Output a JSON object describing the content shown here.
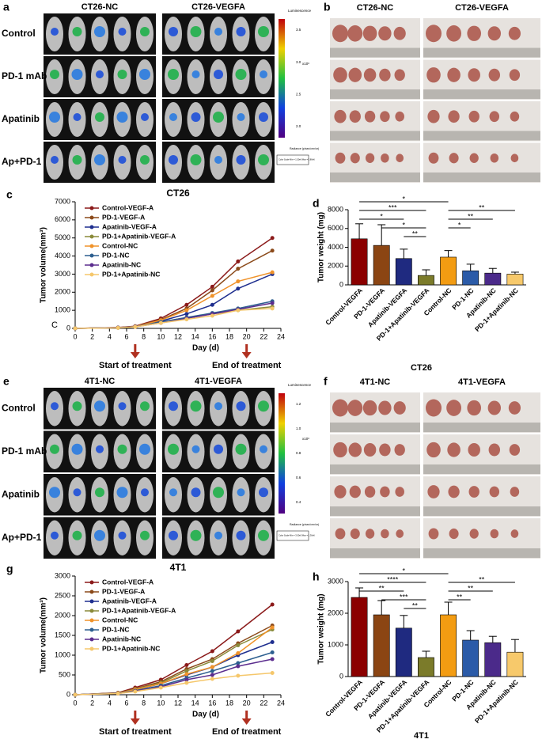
{
  "panels": {
    "a": {
      "letter": "a",
      "groups": [
        "CT26-NC",
        "CT26-VEGFA"
      ],
      "rows": [
        "Control",
        "PD-1 mAb",
        "Apatinib",
        "Ap+PD-1"
      ],
      "colorbar": {
        "title": "Luminescence",
        "ticks": [
          "3.5",
          "3.0",
          "2.5",
          "2.0"
        ],
        "unit": "x10⁶",
        "label": "Radiance (p/sec/cm²/sr)",
        "scale": "Color Scale Min = 1.50e6 Max = 3.80e6"
      }
    },
    "b": {
      "letter": "b",
      "groups": [
        "CT26-NC",
        "CT26-VEGFA"
      ]
    },
    "e": {
      "letter": "e",
      "groups": [
        "4T1-NC",
        "4T1-VEGFA"
      ],
      "rows": [
        "Control",
        "PD-1 mAb",
        "Apatinib",
        "Ap+PD-1"
      ],
      "colorbar": {
        "title": "Luminescence",
        "ticks": [
          "1.2",
          "1.0",
          "0.8",
          "0.6",
          "0.4"
        ],
        "unit": "x10⁶",
        "label": "Radiance (p/sec/cm²/sr)",
        "scale": "Color Scale Min = 3.00e5 Max = 1.30e6"
      }
    },
    "f": {
      "letter": "f",
      "groups": [
        "4T1-NC",
        "4T1-VEGFA"
      ]
    }
  },
  "chart_data": [
    {
      "type": "line",
      "panel": "c",
      "title": "CT26",
      "xlabel": "Day (d)",
      "ylabel": "Tumor volume(mm³)",
      "note": "C",
      "x": [
        0,
        5,
        7,
        10,
        13,
        16,
        19,
        23
      ],
      "xlim": [
        0,
        24
      ],
      "xticks": [
        0,
        2,
        4,
        6,
        8,
        10,
        12,
        14,
        16,
        18,
        20,
        22,
        24
      ],
      "ylim": [
        0,
        7000
      ],
      "yticks": [
        0,
        1000,
        2000,
        3000,
        4000,
        5000,
        6000,
        7000
      ],
      "annotations": [
        {
          "x": 7,
          "label": "Start of treatment"
        },
        {
          "x": 20,
          "label": "End of treatment"
        }
      ],
      "series": [
        {
          "name": "Control-VEGF-A",
          "color": "#8b1a1a",
          "values": [
            0,
            50,
            120,
            550,
            1300,
            2300,
            3700,
            5000
          ]
        },
        {
          "name": "PD-1-VEGF-A",
          "color": "#8b4a1a",
          "values": [
            0,
            45,
            110,
            480,
            1100,
            2100,
            3300,
            4300
          ]
        },
        {
          "name": "Apatinib-VEGF-A",
          "color": "#1f2f8f",
          "values": [
            0,
            40,
            100,
            400,
            800,
            1300,
            2200,
            3000
          ]
        },
        {
          "name": "PD-1+Apatinib-VEGF-A",
          "color": "#8a8a3a",
          "values": [
            0,
            35,
            90,
            350,
            600,
            800,
            1000,
            1200
          ]
        },
        {
          "name": "Control-NC",
          "color": "#f0932b",
          "values": [
            0,
            40,
            100,
            450,
            1000,
            1800,
            2600,
            3100
          ]
        },
        {
          "name": "PD-1-NC",
          "color": "#2d5f8f",
          "values": [
            0,
            35,
            90,
            350,
            600,
            850,
            1100,
            1500
          ]
        },
        {
          "name": "Apatinib-NC",
          "color": "#5b2d8e",
          "values": [
            0,
            35,
            90,
            300,
            550,
            800,
            1050,
            1400
          ]
        },
        {
          "name": "PD-1+Apatinib-NC",
          "color": "#f5c76b",
          "values": [
            0,
            30,
            80,
            300,
            500,
            700,
            1000,
            1100
          ]
        }
      ]
    },
    {
      "type": "bar",
      "panel": "d",
      "xlabel": "CT26",
      "ylabel": "Tumor weight (mg)",
      "categories": [
        "Control-VEGFA",
        "PD-1-VEGFA",
        "Apatinib-VEGFA",
        "PD-1+Apatinib-VEGFA",
        "Control-NC",
        "PD-1-NC",
        "Apatinib-NC",
        "PD-1+Apatinib-NC"
      ],
      "values": [
        4900,
        4200,
        2800,
        1000,
        2950,
        1500,
        1250,
        1150
      ],
      "errors": [
        1600,
        2200,
        1000,
        600,
        700,
        700,
        500,
        200
      ],
      "colors": [
        "#8b0000",
        "#8b4513",
        "#1f2a80",
        "#7b7b2a",
        "#f39c12",
        "#2b5ba8",
        "#4b2a8a",
        "#f7c96b"
      ],
      "ylim": [
        0,
        8000
      ],
      "yticks": [
        0,
        2000,
        4000,
        6000,
        8000
      ],
      "brackets": [
        {
          "from": 0,
          "to": 4,
          "label": "*"
        },
        {
          "from": 0,
          "to": 3,
          "label": "***"
        },
        {
          "from": 0,
          "to": 2,
          "label": "*"
        },
        {
          "from": 1,
          "to": 3,
          "label": "*"
        },
        {
          "from": 2,
          "to": 3,
          "label": "**"
        },
        {
          "from": 4,
          "to": 7,
          "label": "**"
        },
        {
          "from": 4,
          "to": 6,
          "label": "**"
        },
        {
          "from": 4,
          "to": 5,
          "label": "*"
        }
      ]
    },
    {
      "type": "line",
      "panel": "g",
      "title": "4T1",
      "xlabel": "Day (d)",
      "ylabel": "Tumor volume(mm³)",
      "x": [
        0,
        5,
        7,
        10,
        13,
        16,
        19,
        23
      ],
      "xlim": [
        0,
        24
      ],
      "xticks": [
        0,
        2,
        4,
        6,
        8,
        10,
        12,
        14,
        16,
        18,
        20,
        22,
        24
      ],
      "ylim": [
        0,
        3000
      ],
      "yticks": [
        0,
        500,
        1000,
        1500,
        2000,
        2500,
        3000
      ],
      "annotations": [
        {
          "x": 7,
          "label": "Start of treatment"
        },
        {
          "x": 20,
          "label": "End of treatment"
        }
      ],
      "series": [
        {
          "name": "Control-VEGF-A",
          "color": "#8b1a1a",
          "values": [
            0,
            50,
            180,
            380,
            750,
            1100,
            1600,
            2280
          ]
        },
        {
          "name": "PD-1-VEGF-A",
          "color": "#8b4a1a",
          "values": [
            0,
            45,
            150,
            330,
            650,
            900,
            1300,
            1750
          ]
        },
        {
          "name": "Apatinib-VEGF-A",
          "color": "#1f2f8f",
          "values": [
            0,
            40,
            120,
            280,
            500,
            700,
            1000,
            1330
          ]
        },
        {
          "name": "PD-1+Apatinib-VEGF-A",
          "color": "#8a8a3a",
          "values": [
            0,
            40,
            140,
            300,
            600,
            850,
            1250,
            1650
          ]
        },
        {
          "name": "Control-NC",
          "color": "#f0932b",
          "values": [
            0,
            40,
            130,
            280,
            520,
            700,
            1050,
            1700
          ]
        },
        {
          "name": "PD-1-NC",
          "color": "#2d5f8f",
          "values": [
            0,
            35,
            100,
            230,
            420,
            600,
            800,
            1070
          ]
        },
        {
          "name": "Apatinib-NC",
          "color": "#5b2d8e",
          "values": [
            0,
            30,
            90,
            200,
            380,
            500,
            720,
            900
          ]
        },
        {
          "name": "PD-1+Apatinib-NC",
          "color": "#f5c76b",
          "values": [
            0,
            30,
            80,
            180,
            300,
            400,
            480,
            550
          ]
        }
      ]
    },
    {
      "type": "bar",
      "panel": "h",
      "xlabel": "4T1",
      "ylabel": "Tumor weight (mg)",
      "categories": [
        "Control-VEGFA",
        "PD-1-VEGFA",
        "Apatinib-VEGFA",
        "PD-1+Apatinib-VEGFA",
        "Control-NC",
        "PD-1-NC",
        "Apatinib-NC",
        "PD-1+Apatinib-NC"
      ],
      "values": [
        2500,
        1950,
        1530,
        600,
        1950,
        1150,
        1070,
        770
      ],
      "errors": [
        300,
        450,
        400,
        200,
        400,
        300,
        200,
        400
      ],
      "colors": [
        "#8b0000",
        "#8b4513",
        "#1f2a80",
        "#7b7b2a",
        "#f39c12",
        "#2b5ba8",
        "#4b2a8a",
        "#f7c96b"
      ],
      "ylim": [
        0,
        3000
      ],
      "yticks": [
        0,
        1000,
        2000,
        3000
      ],
      "brackets": [
        {
          "from": 0,
          "to": 4,
          "label": "*"
        },
        {
          "from": 0,
          "to": 3,
          "label": "****"
        },
        {
          "from": 0,
          "to": 2,
          "label": "**"
        },
        {
          "from": 1,
          "to": 3,
          "label": "***"
        },
        {
          "from": 2,
          "to": 3,
          "label": "**"
        },
        {
          "from": 4,
          "to": 7,
          "label": "**"
        },
        {
          "from": 4,
          "to": 6,
          "label": "**"
        },
        {
          "from": 4,
          "to": 5,
          "label": "**"
        }
      ]
    }
  ]
}
